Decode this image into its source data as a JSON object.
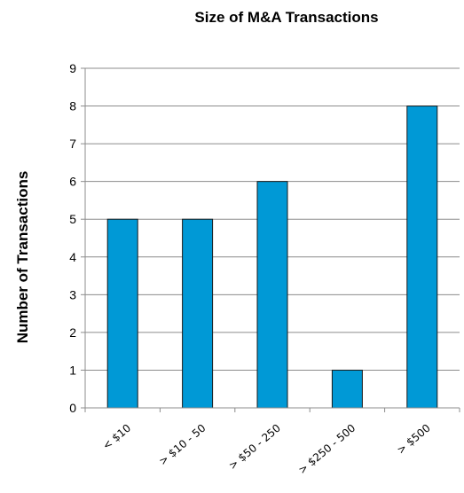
{
  "chart_data": {
    "type": "bar",
    "title": "Size of M&A Transactions",
    "xlabel": "",
    "ylabel": "Number of Transactions",
    "categories": [
      "< $10",
      "> $10 - 50",
      "> $50 - 250",
      "> $250 - 500",
      "> $500"
    ],
    "values": [
      5,
      5,
      6,
      1,
      8
    ],
    "ylim": [
      0,
      9
    ],
    "yticks": [
      "0",
      "1",
      "2",
      "3",
      "4",
      "5",
      "6",
      "7",
      "8",
      "9"
    ],
    "grid": true,
    "bar_color": "#0099d6"
  }
}
